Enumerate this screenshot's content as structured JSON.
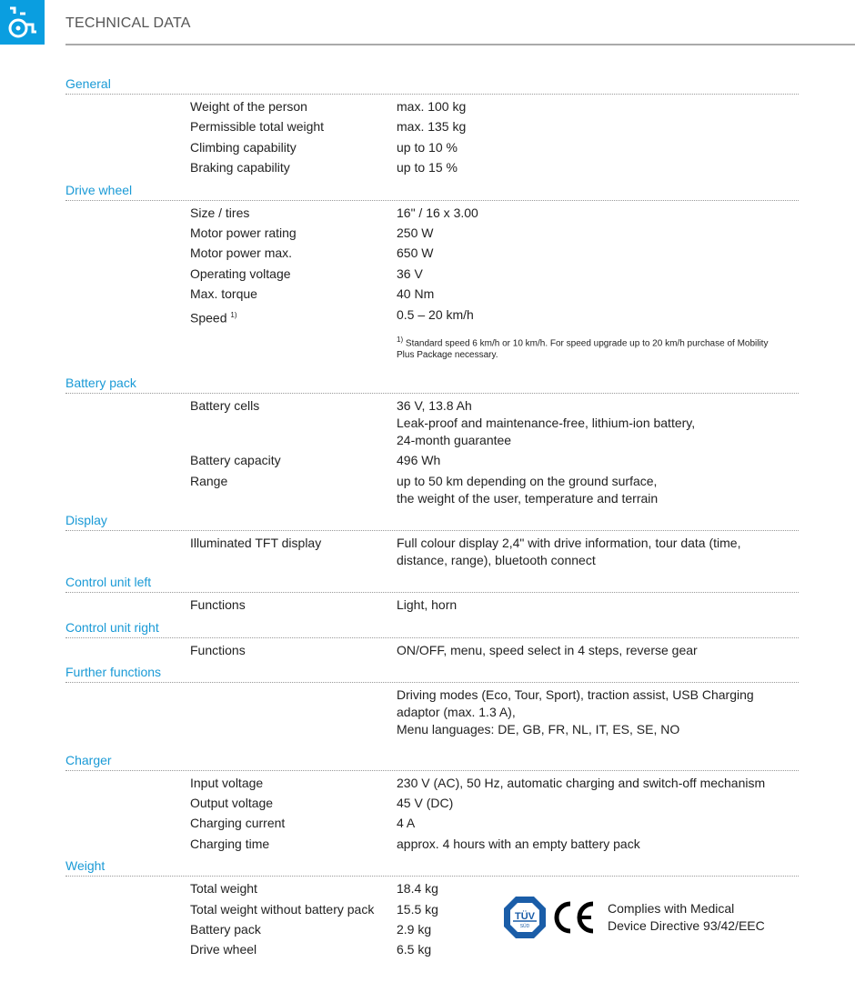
{
  "header": {
    "title": "TECHNICAL DATA",
    "icon": "wheelchair-icon",
    "accent": "#0a9ee0"
  },
  "sections": [
    {
      "title": "General",
      "rows": [
        {
          "label": "Weight of the person",
          "value": "max. 100 kg"
        },
        {
          "label": "Permissible total weight",
          "value": "max. 135 kg"
        },
        {
          "label": "Climbing capability",
          "value": "up to 10 %"
        },
        {
          "label": "Braking capability",
          "value": "up to 15 %"
        }
      ]
    },
    {
      "title": "Drive wheel",
      "rows": [
        {
          "label": "Size / tires",
          "value": "16\" / 16 x 3.00"
        },
        {
          "label": "Motor power rating",
          "value": "250 W"
        },
        {
          "label": "Motor power max.",
          "value": "650 W"
        },
        {
          "label": "Operating voltage",
          "value": "36 V"
        },
        {
          "label": "Max. torque",
          "value": "40 Nm"
        },
        {
          "label": "Speed",
          "sup": "1)",
          "value": "0.5 – 20 km/h"
        }
      ],
      "footnote": {
        "mark": "1)",
        "text": "Standard speed 6 km/h or 10 km/h. For speed upgrade up to 20 km/h purchase of Mobility Plus Package necessary."
      }
    },
    {
      "title": "Battery pack",
      "gap": true,
      "rows": [
        {
          "label": "Battery cells",
          "value": "36 V, 13.8 Ah\nLeak-proof and maintenance-free, lithium-ion battery,\n24-month guarantee"
        },
        {
          "label": "Battery capacity",
          "value": "496 Wh"
        },
        {
          "label": "Range",
          "value": "up to 50 km depending on the ground surface,\nthe weight of the user, temperature and terrain"
        }
      ]
    },
    {
      "title": "Display",
      "rows": [
        {
          "label": "Illuminated TFT display",
          "value": "Full colour display 2,4\" with drive information, tour data (time,\ndistance, range), bluetooth connect"
        }
      ]
    },
    {
      "title": "Control unit left",
      "rows": [
        {
          "label": "Functions",
          "value": "Light, horn"
        }
      ]
    },
    {
      "title": "Control unit right",
      "rows": [
        {
          "label": "Functions",
          "value": "ON/OFF, menu, speed select in 4 steps, reverse gear"
        }
      ]
    },
    {
      "title": "Further functions",
      "rows": [
        {
          "label": "",
          "value": "Driving modes (Eco, Tour, Sport), traction assist, USB Charging\nadaptor (max. 1.3 A),\nMenu languages: DE, GB, FR, NL, IT, ES, SE, NO"
        }
      ]
    },
    {
      "title": "Charger",
      "gap": true,
      "rows": [
        {
          "label": "Input voltage",
          "value": "230 V (AC), 50 Hz, automatic charging and switch-off mechanism"
        },
        {
          "label": "Output voltage",
          "value": "45 V (DC)"
        },
        {
          "label": "Charging current",
          "value": "4 A"
        },
        {
          "label": "Charging time",
          "value": "approx. 4 hours with an empty battery pack"
        }
      ]
    },
    {
      "title": "Weight",
      "rows": [
        {
          "label": "Total weight",
          "value": "18.4 kg"
        },
        {
          "label": "Total weight without battery pack",
          "value": "15.5 kg"
        },
        {
          "label": "Battery pack",
          "value": "2.9 kg"
        },
        {
          "label": "Drive wheel",
          "value": "6.5 kg"
        }
      ]
    }
  ],
  "certification": {
    "tuv_logo": "TÜV SÜD",
    "ce_mark": "CE",
    "text": "Complies with Medical\nDevice Directive 93/42/EEC"
  }
}
